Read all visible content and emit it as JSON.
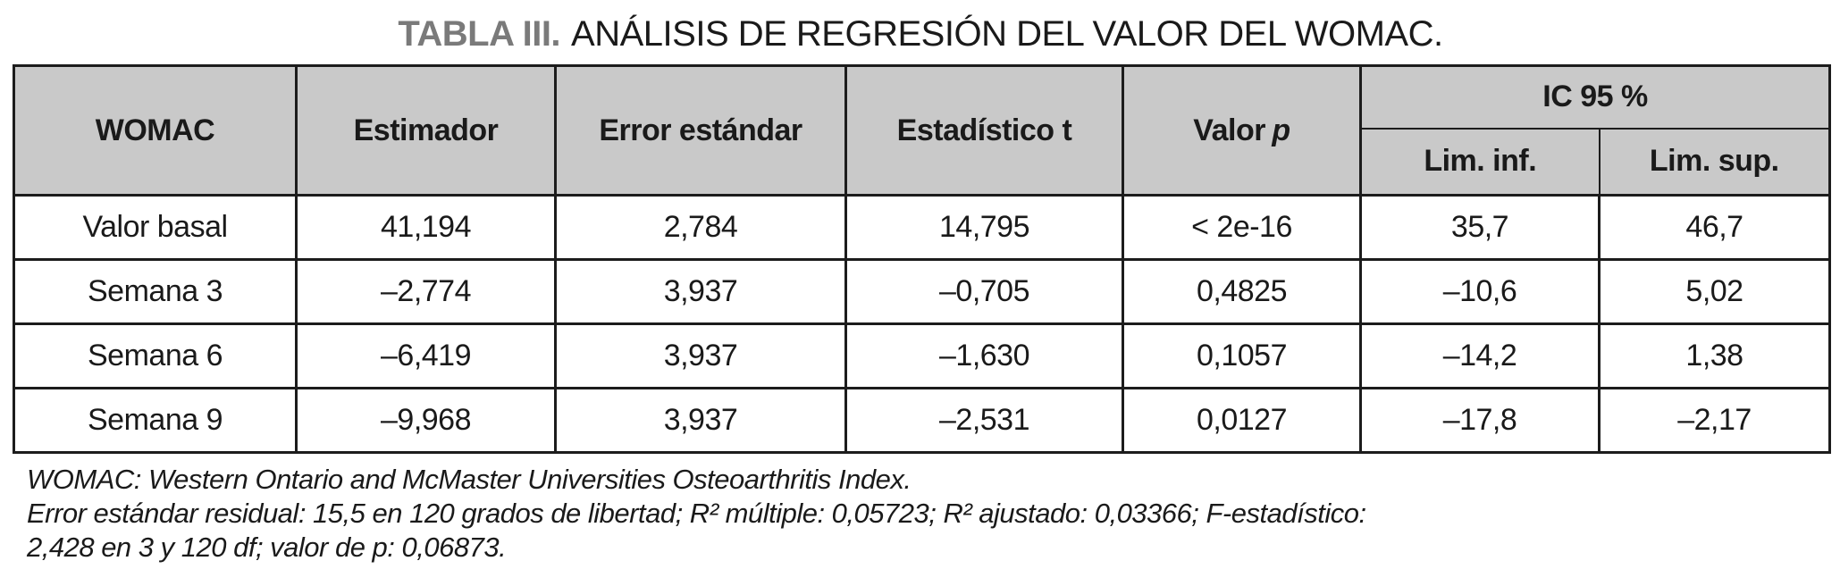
{
  "title": {
    "label": "TABLA III.",
    "text": "ANÁLISIS DE REGRESIÓN DEL VALOR DEL WOMAC."
  },
  "table": {
    "header": {
      "womac": "WOMAC",
      "estimador": "Estimador",
      "error_estandar": "Error estándar",
      "estadistico_t": "Estadístico t",
      "valor_p_prefix": "Valor",
      "valor_p_symbol": "p",
      "ic_group": "IC 95 %",
      "lim_inf": "Lim. inf.",
      "lim_sup": "Lim. sup."
    },
    "rows": [
      [
        "Valor basal",
        "41,194",
        "2,784",
        "14,795",
        "< 2e-16",
        "35,7",
        "46,7"
      ],
      [
        "Semana 3",
        "–2,774",
        "3,937",
        "–0,705",
        "0,4825",
        "–10,6",
        "5,02"
      ],
      [
        "Semana 6",
        "–6,419",
        "3,937",
        "–1,630",
        "0,1057",
        "–14,2",
        "1,38"
      ],
      [
        "Semana 9",
        "–9,968",
        "3,937",
        "–2,531",
        "0,0127",
        "–17,8",
        "–2,17"
      ]
    ]
  },
  "footnotes": [
    "WOMAC: Western Ontario and McMaster Universities Osteoarthritis Index.",
    "Error estándar residual: 15,5 en 120 grados de libertad; R² múltiple: 0,05723; R² ajustado: 0,03366; F-estadístico:",
    "2,428 en 3 y 120 df; valor de p: 0,06873."
  ],
  "colors": {
    "header_bg": "#c9c9c9",
    "border": "#1c1c1c",
    "title_label": "#7a7a7a",
    "text": "#1a1a1a"
  }
}
